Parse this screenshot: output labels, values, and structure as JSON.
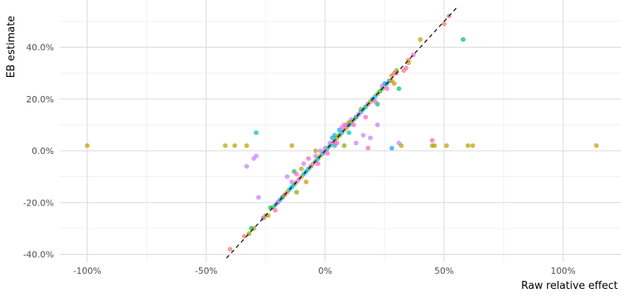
{
  "chart_data": {
    "type": "scatter",
    "xlabel": "Raw relative effect",
    "ylabel": "EB estimate",
    "x_ticks": [
      "-100%",
      "-50%",
      "0%",
      "50%",
      "100%"
    ],
    "x_tick_values": [
      -1.0,
      -0.5,
      0.0,
      0.5,
      1.0
    ],
    "y_ticks": [
      "-40.0%",
      "-20.0%",
      "0.0%",
      "20.0%",
      "40.0%"
    ],
    "y_tick_values": [
      -0.4,
      -0.2,
      0.0,
      0.2,
      0.4
    ],
    "xlim": [
      -1.12,
      1.25
    ],
    "ylim": [
      -0.415,
      0.56
    ],
    "grid": true,
    "legend": "none",
    "reference_line": {
      "style": "dashed",
      "slope": 1,
      "intercept": 0,
      "color": "#000000"
    },
    "series": [
      {
        "color": "#F8766D",
        "points": [
          [
            -0.4,
            -0.38
          ],
          [
            -0.34,
            -0.33
          ],
          [
            -0.2,
            -0.2
          ],
          [
            -0.18,
            -0.18
          ],
          [
            -0.12,
            -0.12
          ],
          [
            -0.05,
            -0.05
          ],
          [
            0.03,
            0.03
          ],
          [
            0.08,
            0.08
          ],
          [
            0.1,
            0.1
          ],
          [
            0.13,
            0.13
          ],
          [
            0.2,
            0.2
          ],
          [
            0.25,
            0.25
          ],
          [
            0.3,
            0.3
          ],
          [
            0.35,
            0.35
          ],
          [
            0.5,
            0.49
          ],
          [
            0.52,
            0.52
          ],
          [
            0.33,
            0.31
          ]
        ]
      },
      {
        "color": "#CD9600",
        "points": [
          [
            -0.3,
            -0.3
          ],
          [
            -0.25,
            -0.25
          ],
          [
            -0.16,
            -0.16
          ],
          [
            -0.1,
            -0.1
          ],
          [
            -0.08,
            -0.12
          ],
          [
            -0.02,
            -0.02
          ],
          [
            0.04,
            0.04
          ],
          [
            0.09,
            0.09
          ],
          [
            0.14,
            0.14
          ],
          [
            0.18,
            0.18
          ],
          [
            0.22,
            0.22
          ],
          [
            0.28,
            0.29
          ],
          [
            0.29,
            0.26
          ],
          [
            0.15,
            0.16
          ]
        ]
      },
      {
        "color": "#7CAE00",
        "points": [
          [
            -0.32,
            -0.32
          ],
          [
            -0.26,
            -0.26
          ],
          [
            -0.22,
            -0.22
          ],
          [
            -0.17,
            -0.17
          ],
          [
            -0.12,
            -0.16
          ],
          [
            -0.06,
            -0.06
          ],
          [
            0.0,
            0.0
          ],
          [
            0.05,
            0.05
          ],
          [
            0.08,
            0.02
          ],
          [
            0.12,
            0.12
          ],
          [
            0.19,
            0.19
          ],
          [
            0.24,
            0.24
          ],
          [
            0.3,
            0.31
          ]
        ]
      },
      {
        "color": "#00BE67",
        "points": [
          [
            -0.31,
            -0.3
          ],
          [
            -0.23,
            -0.22
          ],
          [
            -0.18,
            -0.18
          ],
          [
            -0.13,
            -0.13
          ],
          [
            -0.07,
            -0.07
          ],
          [
            -0.03,
            -0.03
          ],
          [
            0.02,
            0.02
          ],
          [
            0.06,
            0.06
          ],
          [
            0.11,
            0.11
          ],
          [
            0.17,
            0.17
          ],
          [
            0.23,
            0.23
          ],
          [
            0.27,
            0.27
          ],
          [
            0.58,
            0.43
          ],
          [
            0.31,
            0.24
          ],
          [
            0.22,
            0.18
          ],
          [
            -0.13,
            -0.08
          ]
        ]
      },
      {
        "color": "#00BFC4",
        "points": [
          [
            -0.21,
            -0.21
          ],
          [
            -0.15,
            -0.15
          ],
          [
            -0.09,
            -0.09
          ],
          [
            -0.04,
            -0.04
          ],
          [
            0.01,
            0.01
          ],
          [
            0.04,
            0.02
          ],
          [
            0.07,
            0.07
          ],
          [
            0.1,
            0.07
          ],
          [
            0.13,
            0.13
          ],
          [
            0.16,
            0.16
          ],
          [
            0.21,
            0.21
          ],
          [
            0.26,
            0.26
          ],
          [
            -0.29,
            0.07
          ]
        ]
      },
      {
        "color": "#00A9FF",
        "points": [
          [
            -0.19,
            -0.19
          ],
          [
            -0.14,
            -0.14
          ],
          [
            -0.08,
            -0.08
          ],
          [
            -0.01,
            -0.01
          ],
          [
            0.03,
            0.05
          ],
          [
            0.06,
            0.08
          ],
          [
            0.1,
            0.1
          ],
          [
            0.15,
            0.15
          ],
          [
            0.2,
            0.2
          ],
          [
            0.25,
            0.26
          ],
          [
            0.28,
            0.01
          ],
          [
            0.04,
            0.06
          ]
        ]
      },
      {
        "color": "#C77CFF",
        "points": [
          [
            -0.26,
            -0.26
          ],
          [
            -0.2,
            -0.2
          ],
          [
            -0.16,
            -0.1
          ],
          [
            -0.14,
            -0.12
          ],
          [
            -0.11,
            -0.11
          ],
          [
            -0.09,
            -0.05
          ],
          [
            -0.06,
            -0.06
          ],
          [
            -0.04,
            -0.02
          ],
          [
            -0.02,
            0.0
          ],
          [
            0.0,
            0.01
          ],
          [
            0.02,
            0.03
          ],
          [
            0.04,
            0.03
          ],
          [
            0.07,
            0.09
          ],
          [
            0.09,
            0.1
          ],
          [
            0.11,
            0.12
          ],
          [
            0.14,
            0.14
          ],
          [
            0.18,
            0.18
          ],
          [
            0.24,
            0.25
          ],
          [
            0.27,
            0.27
          ],
          [
            0.31,
            0.03
          ],
          [
            -0.33,
            -0.06
          ],
          [
            -0.29,
            -0.02
          ],
          [
            -0.28,
            -0.18
          ],
          [
            -0.3,
            -0.03
          ],
          [
            0.13,
            0.03
          ],
          [
            0.16,
            0.06
          ],
          [
            0.19,
            0.05
          ],
          [
            0.22,
            0.1
          ]
        ]
      },
      {
        "color": "#FF61C3",
        "points": [
          [
            -0.21,
            -0.23
          ],
          [
            -0.17,
            -0.17
          ],
          [
            -0.12,
            -0.09
          ],
          [
            -0.07,
            -0.03
          ],
          [
            -0.03,
            -0.05
          ],
          [
            0.01,
            -0.01
          ],
          [
            0.05,
            0.03
          ],
          [
            0.08,
            0.1
          ],
          [
            0.12,
            0.1
          ],
          [
            0.17,
            0.13
          ],
          [
            0.21,
            0.19
          ],
          [
            0.26,
            0.24
          ],
          [
            0.29,
            0.3
          ],
          [
            0.34,
            0.32
          ],
          [
            0.37,
            0.37
          ],
          [
            0.45,
            0.04
          ],
          [
            0.18,
            0.01
          ]
        ]
      },
      {
        "color": "#B79F00",
        "points": [
          [
            -1.0,
            0.02
          ],
          [
            -0.42,
            0.02
          ],
          [
            -0.38,
            0.02
          ],
          [
            -0.33,
            0.02
          ],
          [
            -0.14,
            0.02
          ],
          [
            0.32,
            0.02
          ],
          [
            0.46,
            0.02
          ],
          [
            0.51,
            0.02
          ],
          [
            0.6,
            0.02
          ],
          [
            0.62,
            0.02
          ],
          [
            1.14,
            0.02
          ],
          [
            0.4,
            0.43
          ],
          [
            -0.04,
            0.0
          ],
          [
            0.1,
            0.11
          ],
          [
            0.06,
            0.06
          ],
          [
            -0.1,
            -0.07
          ],
          [
            -0.24,
            -0.25
          ],
          [
            0.35,
            0.34
          ],
          [
            0.28,
            0.27
          ],
          [
            0.45,
            0.02
          ]
        ]
      }
    ]
  }
}
